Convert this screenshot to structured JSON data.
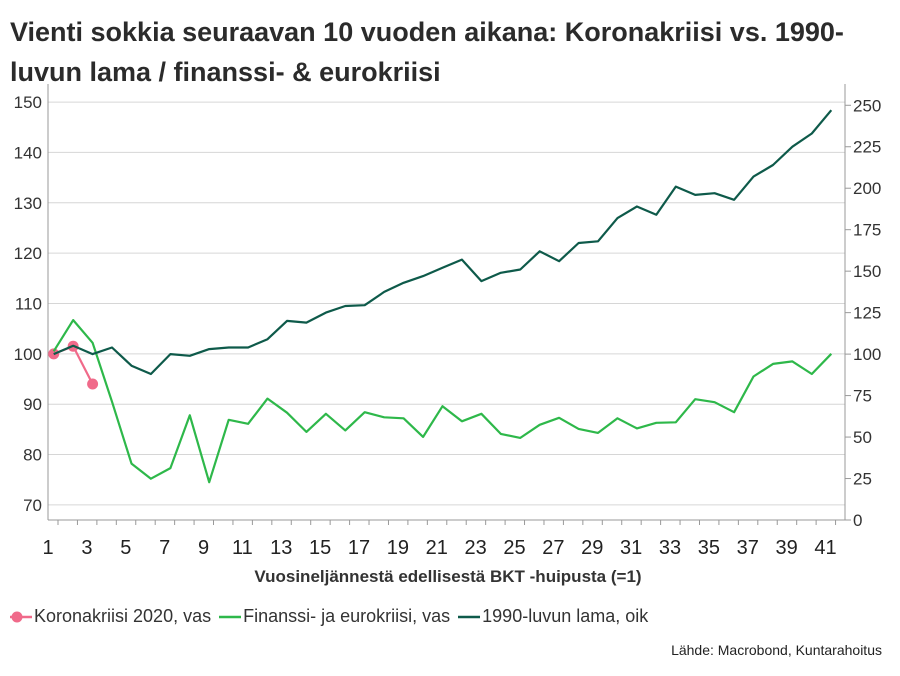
{
  "title": "Vienti sokkia seuraavan 10 vuoden aikana: Koronakriisi vs. 1990-luvun lama / finanssi- & eurokriisi",
  "source": "Lähde: Macrobond, Kuntarahoitus",
  "chart_data": {
    "type": "line",
    "title": "Vienti sokkia seuraavan 10 vuoden aikana: Koronakriisi vs. 1990-luvun lama / finanssi- & eurokriisi",
    "xlabel": "Vuosineljännestä edellisestä BKT -huipusta (=1)",
    "xlim": [
      1,
      42
    ],
    "x_ticks": [
      1,
      3,
      5,
      7,
      9,
      11,
      13,
      15,
      17,
      19,
      21,
      23,
      25,
      27,
      29,
      31,
      33,
      35,
      37,
      39,
      41
    ],
    "ylim_left": [
      67,
      152
    ],
    "y_ticks_left": [
      70,
      80,
      90,
      100,
      110,
      120,
      130,
      140,
      150
    ],
    "ylim_right": [
      0,
      258
    ],
    "y_ticks_right": [
      0,
      25,
      50,
      75,
      100,
      125,
      150,
      175,
      200,
      225,
      250
    ],
    "grid": true,
    "legend_position": "bottom",
    "series": [
      {
        "name": "Koronakriisi 2020, vas",
        "axis": "left",
        "color": "#f06a8a",
        "marker": "circle",
        "x": [
          1.5,
          2.5,
          3.5
        ],
        "values": [
          100,
          101.5,
          94
        ]
      },
      {
        "name": "Finanssi- ja eurokriisi, vas",
        "axis": "left",
        "color": "#2eb84a",
        "x": [
          1.5,
          2.5,
          3.5,
          4.5,
          5.5,
          6.5,
          7.5,
          8.5,
          9.5,
          10.5,
          11.5,
          12.5,
          13.5,
          14.5,
          15.5,
          16.5,
          17.5,
          18.5,
          19.5,
          20.5,
          21.5,
          22.5,
          23.5,
          24.5,
          25.5,
          26.5,
          27.5,
          28.5,
          29.5,
          30.5,
          31.5,
          32.5,
          33.5,
          34.5,
          35.5,
          36.5,
          37.5,
          38.5,
          39.5,
          40.5,
          41.5
        ],
        "values": [
          100.5,
          106.7,
          102.2,
          90.5,
          78.2,
          75.2,
          77.3,
          87.8,
          74.5,
          86.9,
          86.1,
          91.1,
          88.3,
          84.5,
          88.1,
          84.8,
          88.4,
          87.4,
          87.2,
          83.5,
          89.6,
          86.6,
          88.1,
          84.1,
          83.3,
          85.9,
          87.3,
          85.1,
          84.3,
          87.2,
          85.2,
          86.3,
          86.4,
          91.0,
          90.4,
          88.4,
          95.5,
          98.0,
          98.5,
          96.0,
          100.0
        ]
      },
      {
        "name": "1990-luvun lama, oik",
        "axis": "right",
        "color": "#0e5a4a",
        "x": [
          1.5,
          2.5,
          3.5,
          4.5,
          5.5,
          6.5,
          7.5,
          8.5,
          9.5,
          10.5,
          11.5,
          12.5,
          13.5,
          14.5,
          15.5,
          16.5,
          17.5,
          18.5,
          19.5,
          20.5,
          21.5,
          22.5,
          23.5,
          24.5,
          25.5,
          26.5,
          27.5,
          28.5,
          29.5,
          30.5,
          31.5,
          32.5,
          33.5,
          34.5,
          35.5,
          36.5,
          37.5,
          38.5,
          39.5,
          40.5,
          41.5
        ],
        "values": [
          100,
          105,
          100,
          104,
          93,
          88,
          100,
          99,
          103,
          104,
          104,
          109,
          120,
          119,
          125,
          129,
          129.5,
          137.5,
          143,
          147,
          152,
          157,
          144,
          149,
          151,
          162,
          156,
          167,
          168,
          182,
          189,
          184,
          201,
          196,
          197,
          193,
          207,
          214,
          225,
          233,
          247
        ]
      }
    ]
  }
}
